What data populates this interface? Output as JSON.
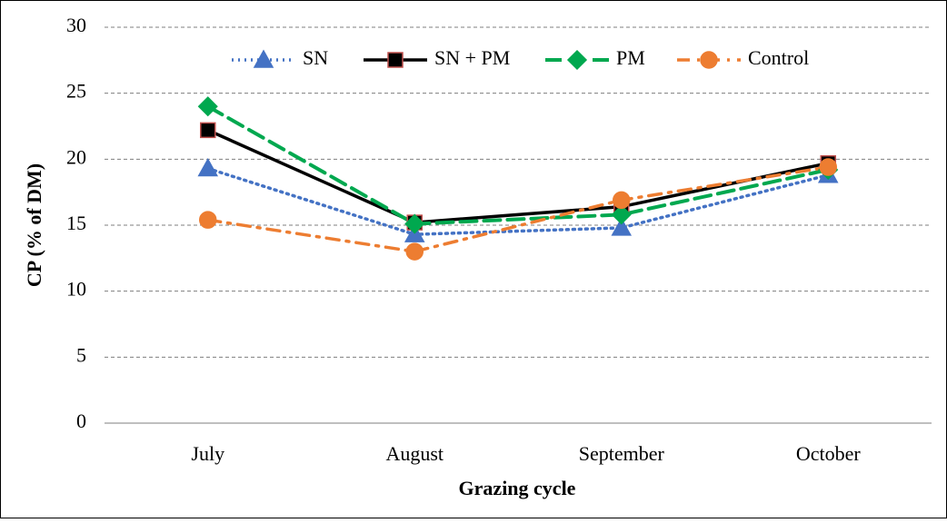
{
  "chart_data": {
    "type": "line",
    "x_label": "Grazing cycle",
    "y_label": "CP (% of DM)",
    "categories": [
      "July",
      "August",
      "September",
      "October"
    ],
    "series": [
      {
        "name": "SN",
        "color": "#4472c4",
        "dash": "dotted",
        "marker": "triangle",
        "values": [
          19.3,
          14.3,
          14.8,
          18.8
        ]
      },
      {
        "name": "SN + PM",
        "color": "#000000",
        "dash": "solid",
        "marker": "square",
        "values": [
          22.2,
          15.2,
          16.4,
          19.7
        ]
      },
      {
        "name": "PM",
        "color": "#00a84f",
        "dash": "dashed",
        "marker": "diamond",
        "values": [
          24.0,
          15.1,
          15.8,
          19.2
        ]
      },
      {
        "name": "Control",
        "color": "#ed7d31",
        "dash": "dashdot",
        "marker": "circle",
        "values": [
          15.4,
          13.0,
          16.9,
          19.4
        ]
      }
    ],
    "ylim": [
      0,
      30
    ],
    "yticks": [
      0,
      5,
      10,
      15,
      20,
      25,
      30
    ],
    "grid": true,
    "legend": "top"
  }
}
